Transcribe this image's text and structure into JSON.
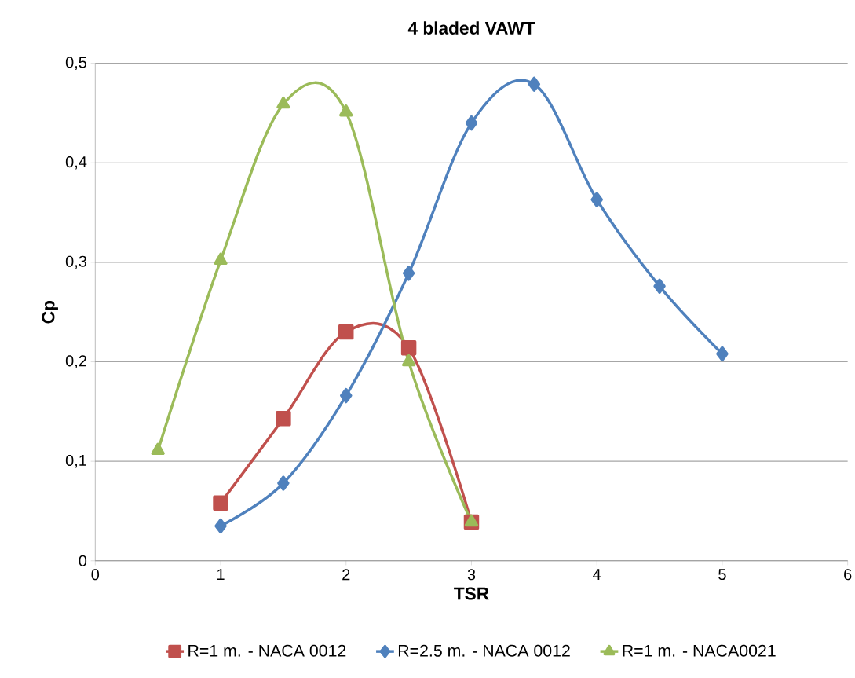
{
  "chart_data": {
    "type": "line",
    "title": "4 bladed VAWT",
    "xlabel": "TSR",
    "ylabel": "Cp",
    "xlim": [
      0,
      6
    ],
    "xticks": [
      0,
      1,
      2,
      3,
      4,
      5,
      6
    ],
    "ylim": [
      0,
      0.5
    ],
    "yticks": [
      {
        "value": 0,
        "label": "0"
      },
      {
        "value": 0.1,
        "label": "0,1"
      },
      {
        "value": 0.2,
        "label": "0,2"
      },
      {
        "value": 0.3,
        "label": "0,3"
      },
      {
        "value": 0.4,
        "label": "0,4"
      },
      {
        "value": 0.5,
        "label": "0,5"
      }
    ],
    "grid": "y",
    "legend": "bottom",
    "line_style": "solid",
    "series": [
      {
        "name": "R=1 m. - NACA 0012",
        "color": "#c0504d",
        "marker": "square",
        "x": [
          1,
          1.5,
          2,
          2.5,
          3
        ],
        "values": [
          0.058,
          0.143,
          0.23,
          0.214,
          0.039
        ]
      },
      {
        "name": "R=2.5 m. - NACA 0012",
        "color": "#4f81bd",
        "marker": "diamond",
        "x": [
          1,
          1.5,
          2,
          2.5,
          3,
          3.5,
          4,
          4.5,
          5
        ],
        "values": [
          0.035,
          0.078,
          0.166,
          0.289,
          0.44,
          0.479,
          0.363,
          0.276,
          0.208
        ]
      },
      {
        "name": "R=1 m. - NACA0021",
        "color": "#9bbb59",
        "marker": "triangle",
        "x": [
          0.5,
          1,
          1.5,
          2,
          2.5,
          3
        ],
        "values": [
          0.111,
          0.302,
          0.459,
          0.451,
          0.2,
          0.039
        ]
      }
    ]
  }
}
